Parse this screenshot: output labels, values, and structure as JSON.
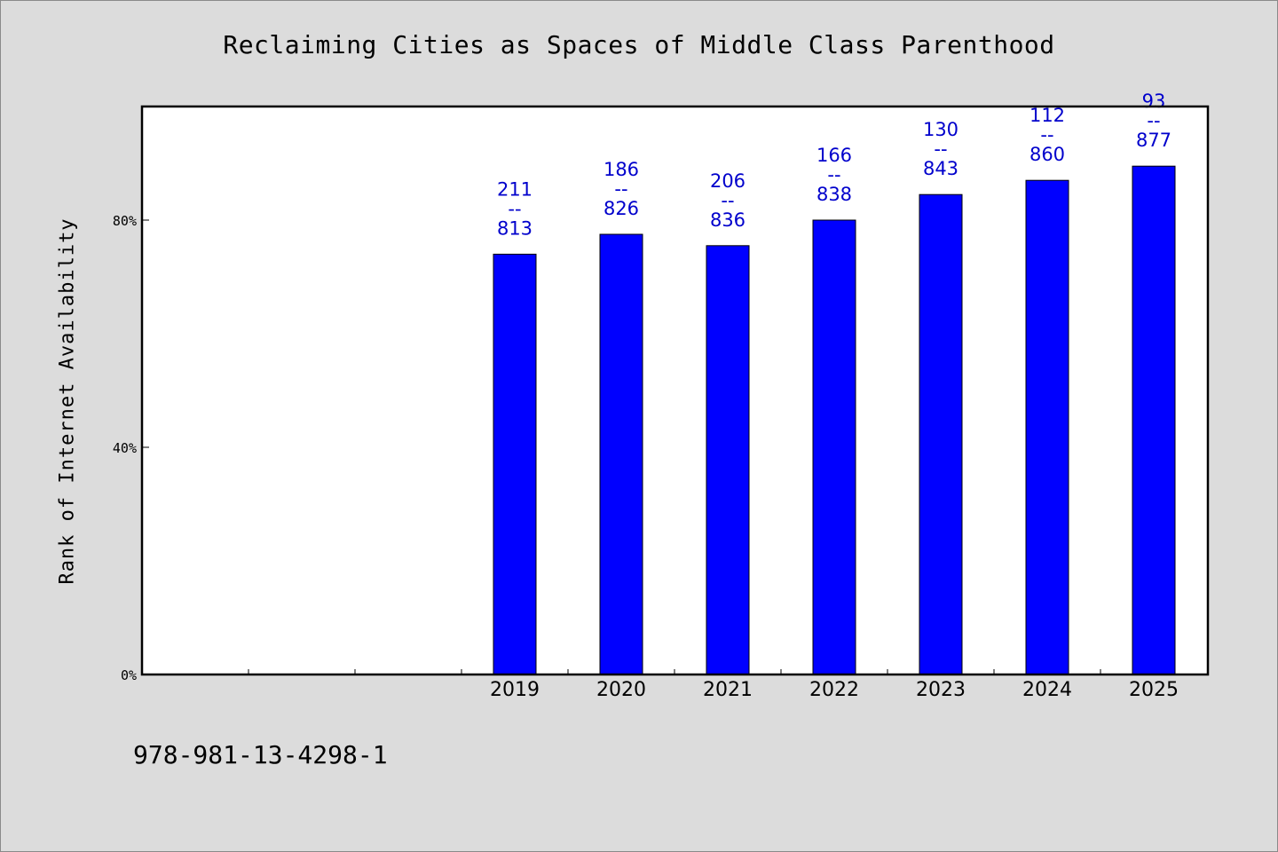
{
  "chart_data": {
    "type": "bar",
    "title": "Reclaiming Cities as Spaces of Middle Class Parenthood",
    "ylabel": "Rank of Internet Availability",
    "xlabel": "",
    "categories": [
      "",
      "",
      "",
      "2019",
      "2020",
      "2021",
      "2022",
      "2023",
      "2024",
      "2025"
    ],
    "series": [
      {
        "values": [
          null,
          null,
          null,
          74.0,
          77.5,
          75.5,
          80.0,
          84.5,
          87.0,
          89.5
        ],
        "data_labels": [
          null,
          null,
          null,
          [
            "211",
            "--",
            "813"
          ],
          [
            "186",
            "--",
            "826"
          ],
          [
            "206",
            "--",
            "836"
          ],
          [
            "166",
            "--",
            "838"
          ],
          [
            "130",
            "--",
            "843"
          ],
          [
            "112",
            "--",
            "860"
          ],
          [
            "93",
            "--",
            "877"
          ]
        ]
      }
    ],
    "yticks": [
      0,
      40,
      80
    ],
    "ytick_labels": [
      "0%",
      "40%",
      "80%"
    ],
    "ylim": [
      0,
      100
    ],
    "grid": false,
    "legend": "none",
    "colors": {
      "bar": "#0000ff",
      "data_label": "#0000cc",
      "background": "#dcdcdc",
      "plot_background": "#ffffff"
    }
  },
  "footer": {
    "code": "978-981-13-4298-1"
  }
}
